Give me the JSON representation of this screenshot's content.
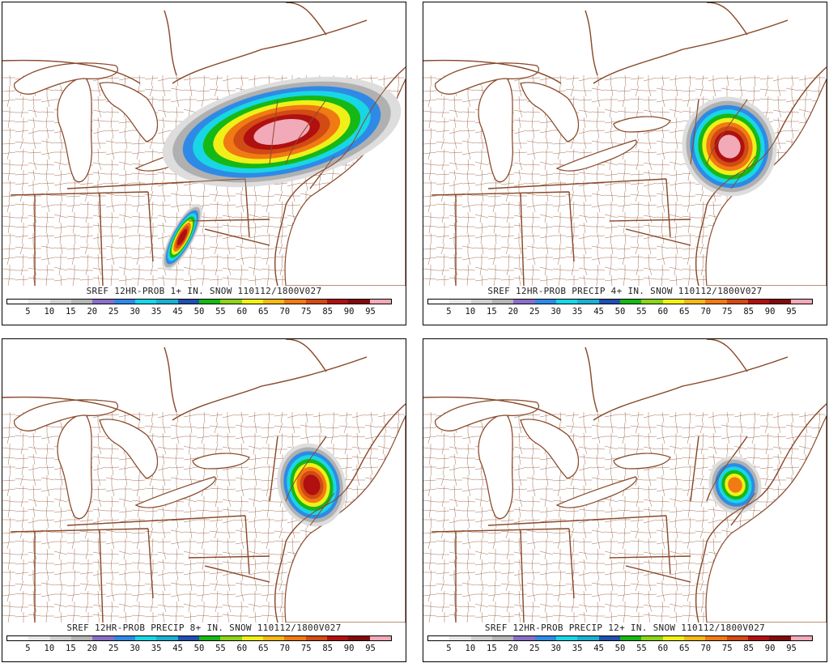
{
  "panels": [
    {
      "title": "SREF 12HR-PROB 1+ IN. SNOW 110112/1800V027"
    },
    {
      "title": "SREF 12HR-PROB PRECIP 4+ IN. SNOW 110112/1800V027"
    },
    {
      "title": "SREF 12HR-PROB PRECIP 8+ IN. SNOW 110112/1800V027"
    },
    {
      "title": "SREF 12HR-PROB PRECIP 12+ IN. SNOW 110112/1800V027"
    }
  ],
  "legend": {
    "ticks": [
      "5",
      "10",
      "15",
      "20",
      "25",
      "30",
      "35",
      "45",
      "50",
      "55",
      "60",
      "65",
      "70",
      "75",
      "85",
      "90",
      "95"
    ],
    "colors": [
      "#ffffff",
      "#e8e8e8",
      "#cfcfcf",
      "#b5b5b5",
      "#8a6fc8",
      "#2f8ae6",
      "#19d6e6",
      "#1ab0d2",
      "#2050b0",
      "#16b816",
      "#8cd41a",
      "#f0f018",
      "#f6b818",
      "#f07a14",
      "#d24a14",
      "#b01010",
      "#820a0a",
      "#f2aab8"
    ]
  },
  "colors": {
    "boundary": "#8a4a2a",
    "lake_fill": "#ffffff",
    "land_fill": "#ffffff"
  }
}
